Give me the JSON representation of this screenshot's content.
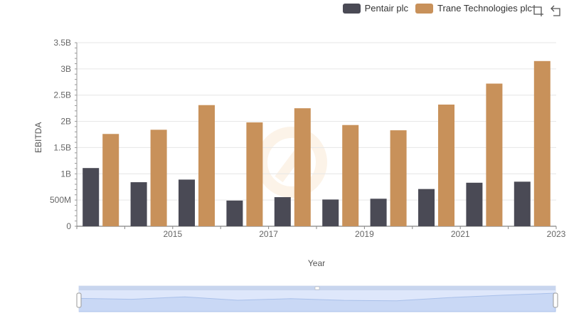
{
  "legend": {
    "items": [
      {
        "label": "Pentair plc",
        "color": "#4a4a55"
      },
      {
        "label": "Trane Technologies plc",
        "color": "#c8915a"
      }
    ]
  },
  "toolbar": {
    "zoom_icon": "zoom-select-icon",
    "restore_icon": "restore-icon"
  },
  "chart_data": {
    "type": "bar",
    "xlabel": "Year",
    "ylabel": "EBITDA",
    "categories": [
      "2014",
      "2015",
      "2016",
      "2017",
      "2018",
      "2019",
      "2020",
      "2021",
      "2022",
      "2023"
    ],
    "x_tick_labels": [
      "2015",
      "2017",
      "2019",
      "2021",
      "2023"
    ],
    "y_tick_labels": [
      "0",
      "500M",
      "1B",
      "1.5B",
      "2B",
      "2.5B",
      "3B",
      "3.5B"
    ],
    "ylim": [
      0,
      3500000000
    ],
    "grid": true,
    "legend_position": "top-right",
    "series": [
      {
        "name": "Pentair plc",
        "color": "#4a4a55",
        "values": [
          1110000000,
          840000000,
          890000000,
          490000000,
          555000000,
          510000000,
          525000000,
          710000000,
          830000000,
          850000000
        ]
      },
      {
        "name": "Trane Technologies plc",
        "color": "#c8915a",
        "values": [
          1760000000,
          1840000000,
          2310000000,
          1980000000,
          2250000000,
          1930000000,
          1830000000,
          2320000000,
          2720000000,
          3150000000
        ]
      }
    ]
  }
}
